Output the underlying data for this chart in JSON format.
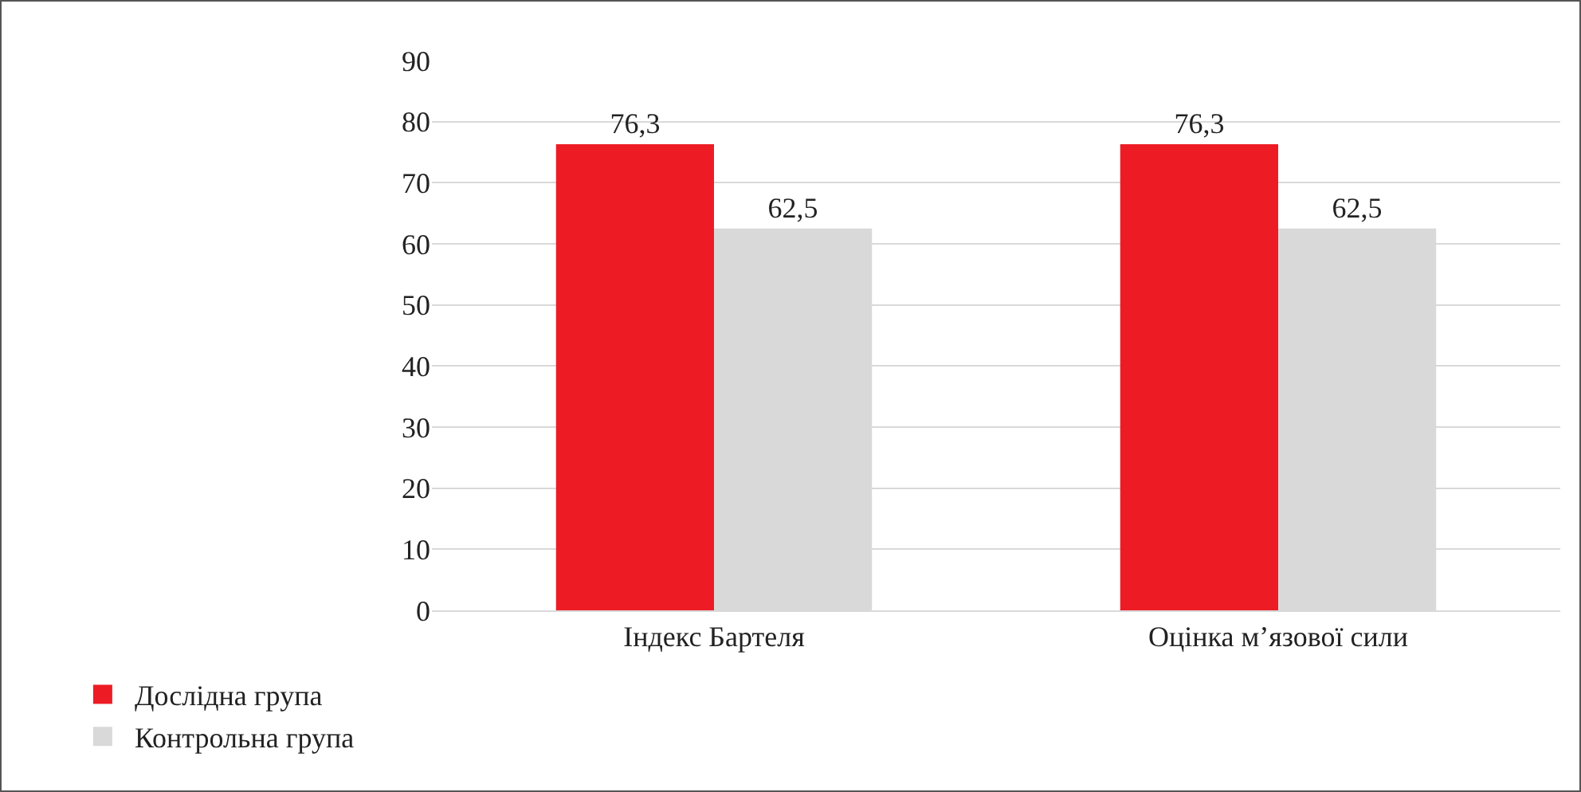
{
  "chart_data": {
    "type": "bar",
    "categories": [
      "Індекс Бартеля",
      "Оцінка м’язової сили"
    ],
    "series": [
      {
        "name": "Дослідна група",
        "color": "#ed1c24",
        "values": [
          76.3,
          76.3
        ],
        "value_labels": [
          "76,3",
          "76,3"
        ]
      },
      {
        "name": "Контрольна група",
        "color": "#d9d9d9",
        "values": [
          62.5,
          62.5
        ],
        "value_labels": [
          "62,5",
          "62,5"
        ]
      }
    ],
    "ylim": [
      0,
      90
    ],
    "yticks": [
      0,
      10,
      20,
      30,
      40,
      50,
      60,
      70,
      80,
      90
    ],
    "grid": "y",
    "legend": "bottom left"
  }
}
